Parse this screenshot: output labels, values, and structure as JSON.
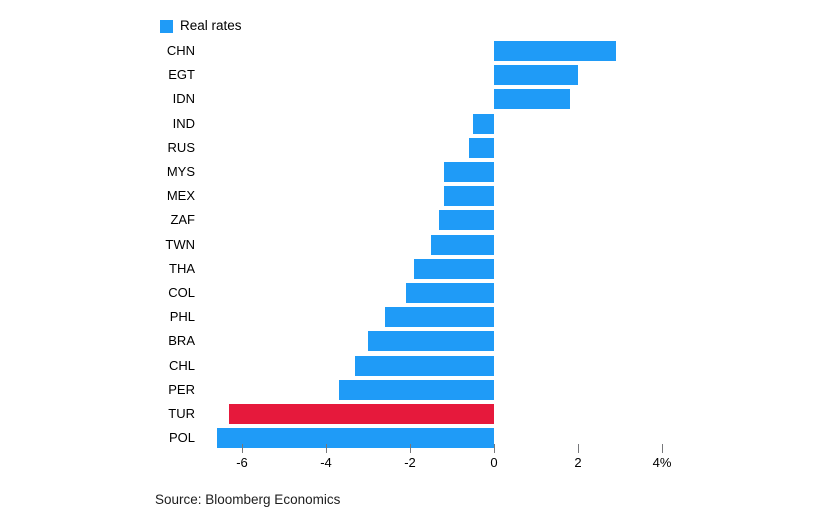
{
  "chart_data": {
    "type": "bar",
    "orientation": "horizontal",
    "title": "",
    "legend": "Real rates",
    "legend_position": "top-left",
    "unit": "%",
    "categories": [
      "CHN",
      "EGT",
      "IDN",
      "IND",
      "RUS",
      "MYS",
      "MEX",
      "ZAF",
      "TWN",
      "THA",
      "COL",
      "PHL",
      "BRA",
      "CHL",
      "PER",
      "TUR",
      "POL"
    ],
    "values": [
      2.9,
      2.0,
      1.8,
      -0.5,
      -0.6,
      -1.2,
      -1.2,
      -1.3,
      -1.5,
      -1.9,
      -2.1,
      -2.6,
      -3.0,
      -3.3,
      -3.7,
      -6.3,
      -6.6
    ],
    "highlight_category": "TUR",
    "xticks": [
      -6,
      -4,
      -2,
      0,
      2,
      4
    ],
    "xtick_labels": [
      "-6",
      "-4",
      "-2",
      "0",
      "2",
      "4%"
    ],
    "xlim": [
      -6.9,
      4.7
    ],
    "grid": false,
    "colors": {
      "bar": "#1f9bf7",
      "highlight": "#e6193c",
      "tick": "#77787b",
      "text": "#000000"
    }
  },
  "source": "Source: Bloomberg Economics"
}
